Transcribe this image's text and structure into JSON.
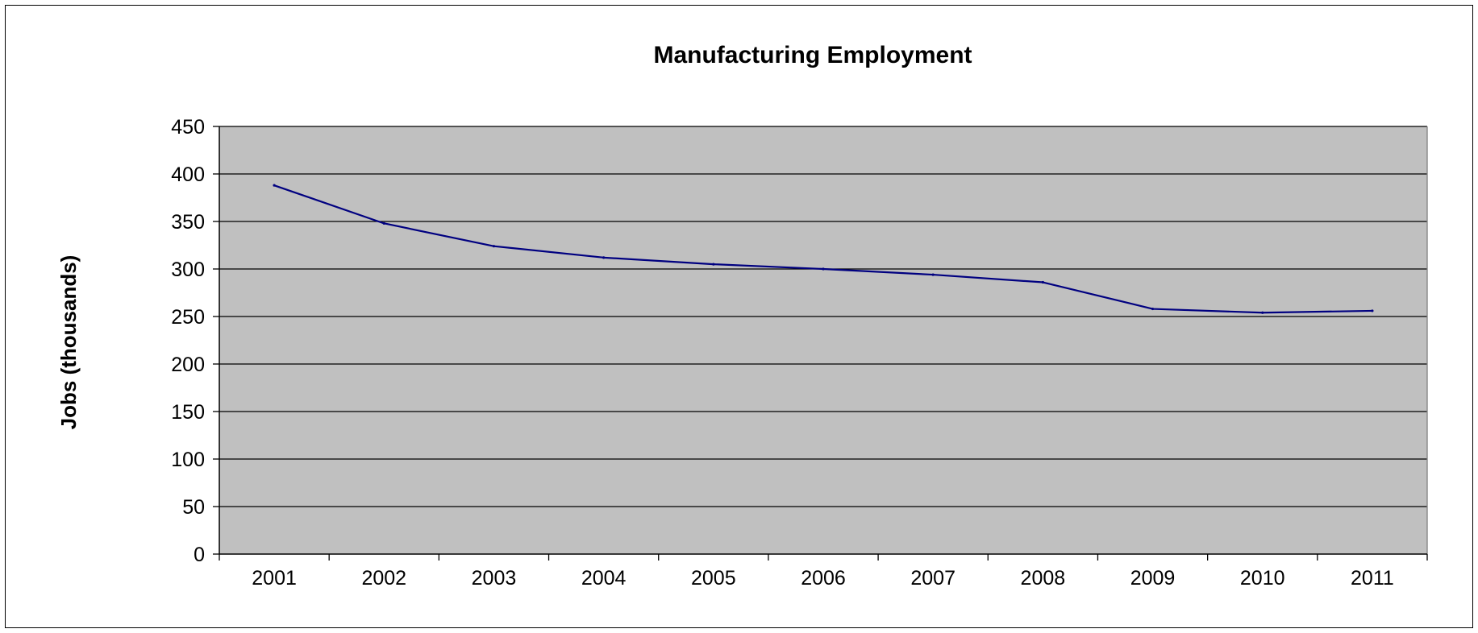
{
  "chart_data": {
    "type": "line",
    "title": "Manufacturing Employment",
    "xlabel": "",
    "ylabel": "Jobs (thousands)",
    "categories": [
      "2001",
      "2002",
      "2003",
      "2004",
      "2005",
      "2006",
      "2007",
      "2008",
      "2009",
      "2010",
      "2011"
    ],
    "series": [
      {
        "values": [
          388,
          348,
          324,
          312,
          305,
          300,
          294,
          286,
          258,
          254,
          256
        ]
      }
    ],
    "ylim": [
      0,
      450
    ],
    "yticks": [
      0,
      50,
      100,
      150,
      200,
      250,
      300,
      350,
      400,
      450
    ],
    "grid": true,
    "legend": "none",
    "colors": {
      "plot_background": "#c0c0c0",
      "line": "#000080",
      "gridline": "#000000"
    }
  }
}
